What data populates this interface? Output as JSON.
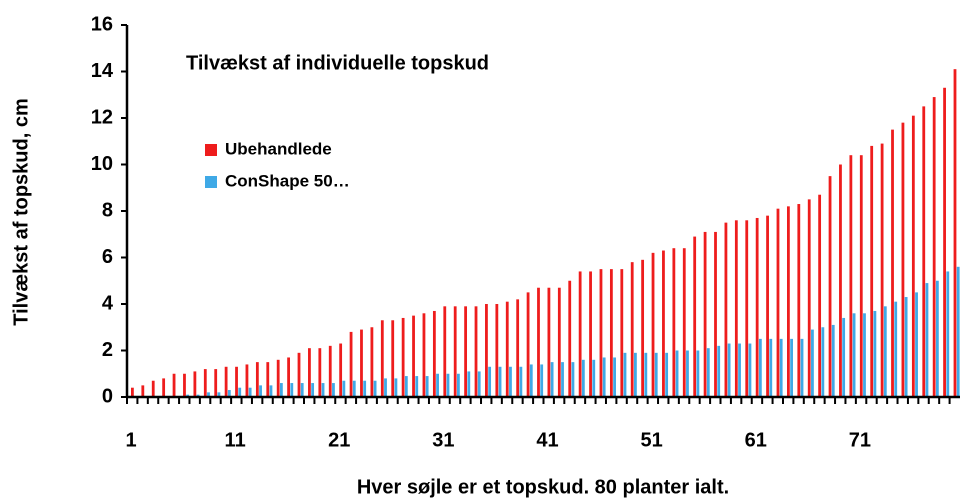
{
  "chart_data": {
    "type": "bar",
    "title": "Tilvækst af individuelle topskud",
    "x_label": "Hver søjle er et topskud. 80 planter ialt.",
    "y_label": "Tilvækst af topskud, cm",
    "categories": [
      "1",
      null,
      null,
      null,
      null,
      null,
      null,
      null,
      null,
      null,
      "11",
      null,
      null,
      null,
      null,
      null,
      null,
      null,
      null,
      null,
      "21",
      null,
      null,
      null,
      null,
      null,
      null,
      null,
      null,
      null,
      "31",
      null,
      null,
      null,
      null,
      null,
      null,
      null,
      null,
      null,
      "41",
      null,
      null,
      null,
      null,
      null,
      null,
      null,
      null,
      null,
      "51",
      null,
      null,
      null,
      null,
      null,
      null,
      null,
      null,
      null,
      "61",
      null,
      null,
      null,
      null,
      null,
      null,
      null,
      null,
      null,
      "71",
      null,
      null,
      null,
      null,
      null,
      null,
      null,
      null,
      null
    ],
    "series": [
      {
        "name": "Ubehandlede",
        "color": "#ee1c1c",
        "values": [
          0.4,
          0.5,
          0.7,
          0.8,
          1.0,
          1.0,
          1.1,
          1.2,
          1.2,
          1.3,
          1.3,
          1.4,
          1.5,
          1.5,
          1.6,
          1.7,
          1.9,
          2.1,
          2.1,
          2.2,
          2.3,
          2.8,
          2.9,
          3.0,
          3.3,
          3.3,
          3.4,
          3.5,
          3.6,
          3.7,
          3.9,
          3.9,
          3.9,
          3.9,
          4.0,
          4.0,
          4.1,
          4.2,
          4.5,
          4.7,
          4.7,
          4.7,
          5.0,
          5.4,
          5.4,
          5.5,
          5.5,
          5.5,
          5.8,
          5.9,
          6.2,
          6.3,
          6.4,
          6.4,
          6.9,
          7.1,
          7.1,
          7.5,
          7.6,
          7.6,
          7.7,
          7.8,
          8.1,
          8.2,
          8.3,
          8.5,
          8.7,
          9.5,
          10.0,
          10.4,
          10.4,
          10.8,
          10.9,
          11.5,
          11.8,
          12.1,
          12.5,
          12.9,
          13.3,
          14.1
        ]
      },
      {
        "name": "ConShape 50…",
        "color": "#3fa9e6",
        "values": [
          0,
          0,
          0,
          0,
          0,
          0.1,
          0.1,
          0.2,
          0.2,
          0.3,
          0.4,
          0.4,
          0.5,
          0.5,
          0.6,
          0.6,
          0.6,
          0.6,
          0.6,
          0.6,
          0.7,
          0.7,
          0.7,
          0.7,
          0.8,
          0.8,
          0.9,
          0.9,
          0.9,
          1.0,
          1.0,
          1.0,
          1.1,
          1.1,
          1.3,
          1.3,
          1.3,
          1.3,
          1.4,
          1.4,
          1.5,
          1.5,
          1.5,
          1.6,
          1.6,
          1.7,
          1.7,
          1.9,
          1.9,
          1.9,
          1.9,
          1.9,
          2.0,
          2.0,
          2.0,
          2.1,
          2.2,
          2.3,
          2.3,
          2.3,
          2.5,
          2.5,
          2.5,
          2.5,
          2.5,
          2.9,
          3.0,
          3.1,
          3.4,
          3.6,
          3.6,
          3.7,
          3.9,
          4.1,
          4.3,
          4.5,
          4.9,
          5.0,
          5.4,
          5.6
        ]
      }
    ],
    "ylim": [
      0,
      16
    ],
    "yticks": [
      0,
      2,
      4,
      6,
      8,
      10,
      12,
      14,
      16
    ],
    "legend": "upper left"
  }
}
